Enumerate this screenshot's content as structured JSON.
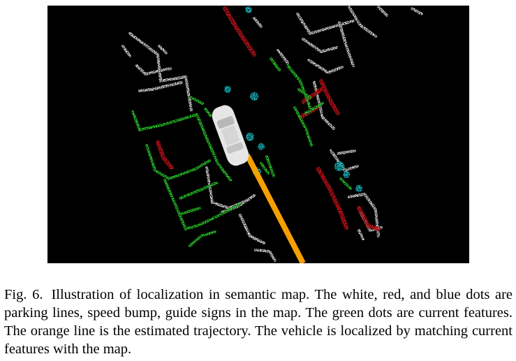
{
  "figure": {
    "label": "Fig. 6.",
    "caption": "Illustration of localization in semantic map. The white, red, and blue dots are parking lines, speed bump, guide signs in the map. The green dots are current features. The orange line is the estimated trajectory. The vehicle is localized by matching current features with the map.",
    "colors": {
      "background": "#000000",
      "parking_lines": "#f2f2f2",
      "speed_bump": "#e8141b",
      "guide_signs": "#18d8e0",
      "current_features": "#2ee62e",
      "trajectory": "#f5a000",
      "vehicle": "#e6e6e6"
    }
  }
}
